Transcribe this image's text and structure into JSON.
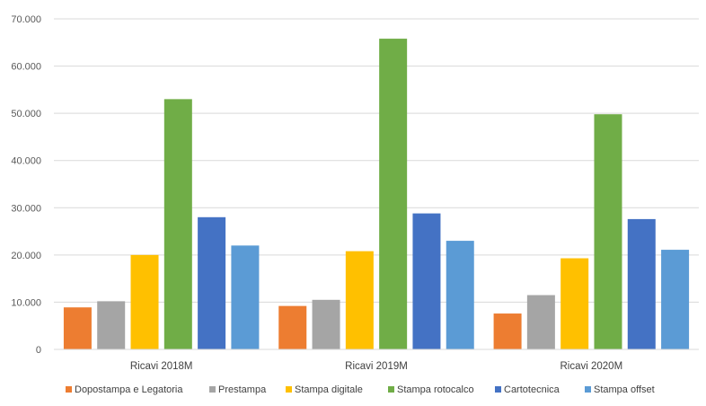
{
  "chart_data": {
    "type": "bar",
    "categories": [
      "Ricavi 2018M",
      "Ricavi 2019M",
      "Ricavi 2020M"
    ],
    "ylim": [
      0,
      70000
    ],
    "yticks": [
      0,
      10000,
      20000,
      30000,
      40000,
      50000,
      60000,
      70000
    ],
    "ytick_labels": [
      "0",
      "10.000",
      "20.000",
      "30.000",
      "40.000",
      "50.000",
      "60.000",
      "70.000"
    ],
    "grid": true,
    "legend_position": "bottom",
    "series": [
      {
        "name": "Dopostampa e Legatoria",
        "color": "#ed7d31",
        "values": [
          8900,
          9200,
          7600
        ]
      },
      {
        "name": "Prestampa",
        "color": "#a5a5a5",
        "values": [
          10200,
          10500,
          11500
        ]
      },
      {
        "name": "Stampa digitale",
        "color": "#ffc000",
        "values": [
          20000,
          20800,
          19300
        ]
      },
      {
        "name": "Stampa rotocalco",
        "color": "#70ad47",
        "values": [
          53000,
          65800,
          49800
        ]
      },
      {
        "name": "Cartotecnica",
        "color": "#4472c4",
        "values": [
          28000,
          28800,
          27600
        ]
      },
      {
        "name": "Stampa offset",
        "color": "#5b9bd5",
        "values": [
          22000,
          23000,
          21100
        ]
      }
    ]
  }
}
